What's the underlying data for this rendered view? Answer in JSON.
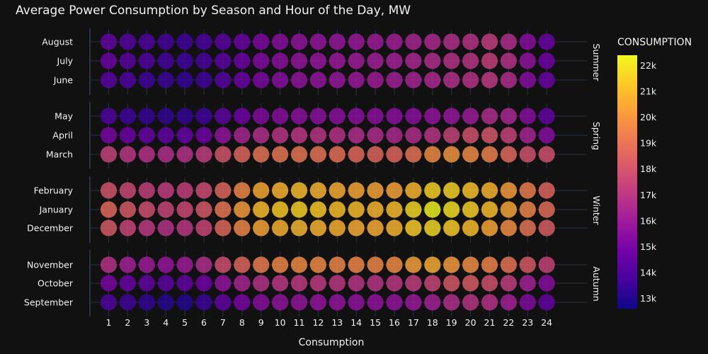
{
  "chart_data": {
    "type": "scatter",
    "title": "Average Power Consumption by Season and Hour of the Day, MW",
    "xlabel": "Consumption",
    "ylabel": "",
    "x": [
      1,
      2,
      3,
      4,
      5,
      6,
      7,
      8,
      9,
      10,
      11,
      12,
      13,
      14,
      15,
      16,
      17,
      18,
      19,
      20,
      21,
      22,
      23,
      24
    ],
    "xlim": [
      0.5,
      24.5
    ],
    "grid": true,
    "legend": "right",
    "colorbar": {
      "title": "CONSUMPTION",
      "ticks": [
        "13k",
        "14k",
        "15k",
        "16k",
        "17k",
        "18k",
        "19k",
        "20k",
        "21k",
        "22k"
      ],
      "range": [
        12600,
        22400
      ],
      "colors": [
        "#0d0887",
        "#46039f",
        "#7201a8",
        "#9c179e",
        "#bd3786",
        "#d8576b",
        "#ed7953",
        "#fb9f3a",
        "#fdca26",
        "#f0f921"
      ]
    },
    "facets": [
      {
        "label": "Summer",
        "months": [
          {
            "name": "August",
            "values": [
              14.4,
              14.1,
              13.9,
              13.7,
              13.6,
              13.8,
              14.2,
              14.6,
              15.1,
              15.4,
              15.6,
              15.7,
              15.8,
              15.9,
              16.0,
              16.1,
              16.3,
              16.5,
              16.7,
              16.8,
              17.2,
              16.6,
              15.4,
              14.6
            ]
          },
          {
            "name": "July",
            "values": [
              14.6,
              14.2,
              13.9,
              13.7,
              13.6,
              13.8,
              14.2,
              14.7,
              15.2,
              15.5,
              15.7,
              15.8,
              15.9,
              16.0,
              16.1,
              16.2,
              16.4,
              16.6,
              16.8,
              16.9,
              17.3,
              16.8,
              15.6,
              14.8
            ]
          },
          {
            "name": "June",
            "values": [
              14.2,
              13.9,
              13.6,
              13.5,
              13.4,
              13.6,
              14.1,
              14.6,
              15.1,
              15.4,
              15.6,
              15.7,
              15.8,
              15.9,
              16.0,
              16.1,
              16.3,
              16.5,
              16.7,
              16.8,
              17.1,
              16.6,
              15.4,
              14.6
            ]
          }
        ]
      },
      {
        "label": "Spring",
        "months": [
          {
            "name": "May",
            "values": [
              13.9,
              13.6,
              13.4,
              13.3,
              13.3,
              13.6,
              14.3,
              14.8,
              15.2,
              15.4,
              15.5,
              15.5,
              15.5,
              15.5,
              15.5,
              15.5,
              15.5,
              15.6,
              15.8,
              16.0,
              16.6,
              16.4,
              15.4,
              14.4
            ]
          },
          {
            "name": "April",
            "values": [
              15.0,
              14.7,
              14.5,
              14.4,
              14.5,
              14.8,
              15.6,
              16.3,
              16.7,
              16.9,
              17.0,
              16.9,
              16.8,
              16.7,
              16.6,
              16.5,
              16.6,
              16.9,
              17.4,
              17.9,
              18.1,
              17.4,
              16.3,
              15.4
            ]
          },
          {
            "name": "March",
            "values": [
              17.4,
              17.0,
              16.8,
              16.7,
              16.8,
              17.2,
              18.0,
              18.6,
              19.0,
              19.1,
              19.1,
              19.0,
              18.9,
              18.7,
              18.6,
              18.6,
              19.0,
              19.7,
              20.0,
              19.7,
              19.4,
              18.7,
              17.9,
              17.9
            ]
          }
        ]
      },
      {
        "label": "Winter",
        "months": [
          {
            "name": "February",
            "values": [
              18.0,
              17.6,
              17.3,
              17.2,
              17.3,
              17.7,
              18.6,
              19.6,
              20.5,
              20.8,
              21.0,
              20.8,
              20.6,
              20.5,
              20.4,
              20.4,
              20.9,
              21.6,
              21.6,
              21.2,
              20.8,
              20.2,
              19.3,
              18.5
            ]
          },
          {
            "name": "January",
            "values": [
              18.7,
              18.2,
              17.8,
              17.5,
              17.6,
              18.1,
              19.1,
              20.2,
              21.0,
              21.3,
              21.5,
              21.3,
              21.1,
              21.0,
              20.9,
              21.0,
              21.7,
              22.3,
              21.9,
              21.5,
              21.0,
              20.4,
              19.5,
              18.8
            ]
          },
          {
            "name": "December",
            "values": [
              18.2,
              17.5,
              17.1,
              16.8,
              17.0,
              17.5,
              18.6,
              19.6,
              20.4,
              20.7,
              20.9,
              20.8,
              20.7,
              20.6,
              20.6,
              20.8,
              21.4,
              21.7,
              21.4,
              21.0,
              20.5,
              19.8,
              19.0,
              18.3
            ]
          }
        ]
      },
      {
        "label": "Autumn",
        "months": [
          {
            "name": "November",
            "values": [
              16.8,
              16.2,
              16.0,
              15.8,
              16.0,
              16.6,
              17.8,
              18.6,
              19.3,
              19.6,
              19.7,
              19.7,
              19.6,
              19.6,
              19.6,
              19.7,
              20.3,
              20.6,
              20.2,
              19.8,
              19.5,
              19.0,
              18.2,
              17.4
            ]
          },
          {
            "name": "October",
            "values": [
              15.0,
              14.6,
              14.4,
              14.3,
              14.4,
              14.8,
              15.6,
              16.3,
              16.8,
              17.0,
              17.1,
              17.1,
              17.0,
              16.9,
              16.9,
              17.0,
              17.2,
              17.5,
              18.1,
              18.3,
              17.9,
              17.2,
              16.2,
              15.4
            ]
          },
          {
            "name": "September",
            "values": [
              13.9,
              13.6,
              13.3,
              13.1,
              13.1,
              13.5,
              14.4,
              15.0,
              15.4,
              15.6,
              15.7,
              15.7,
              15.7,
              15.6,
              15.6,
              15.7,
              15.9,
              16.2,
              16.7,
              16.9,
              16.8,
              16.2,
              15.2,
              14.4
            ]
          }
        ]
      }
    ]
  }
}
